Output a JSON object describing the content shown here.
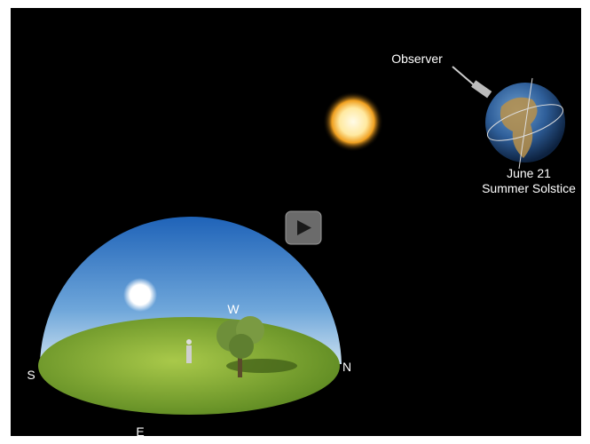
{
  "observer": {
    "label": "Observer"
  },
  "earth": {
    "date": "June 21",
    "event": "Summer Solstice"
  },
  "directions": {
    "west": "W",
    "south": "S",
    "north": "N",
    "east": "E"
  }
}
